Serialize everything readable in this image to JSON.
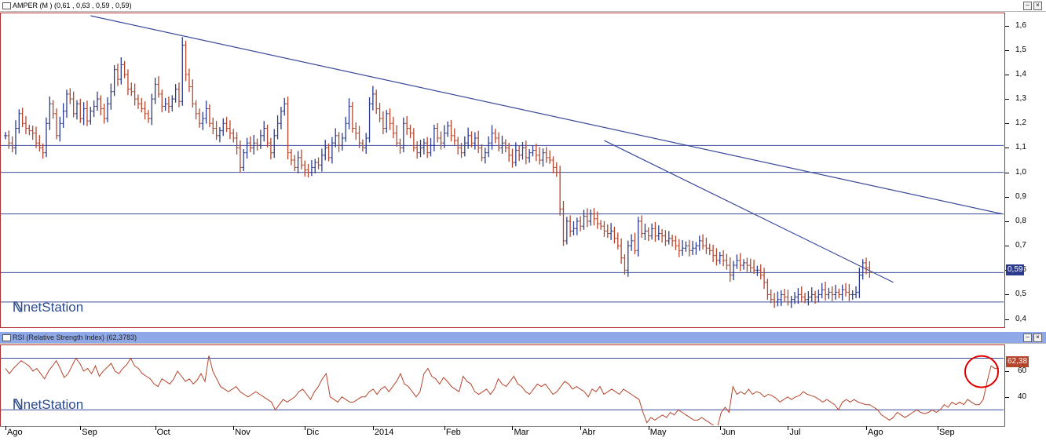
{
  "price_panel": {
    "title": "AMPER (M ) (0,61 , 0,63 , 0,59 , 0,59)",
    "last_value_tag": "0,59",
    "watermark": "netStation"
  },
  "rsi_panel": {
    "title": "RSI (Relative Strength Index) (62,3783)",
    "last_value_tag": "62,38",
    "watermark": "netStation"
  },
  "colors": {
    "bar_up": "#2b3a8c",
    "bar_down": "#b5452b",
    "trendline": "#3a4a99",
    "rsi_line": "#b5452b",
    "frame": "#b03030",
    "last_tag_price": "#2b3a8c",
    "last_tag_rsi": "#b5452b",
    "annotation_circle": "#e00000"
  },
  "chart_data": [
    {
      "type": "ohlc",
      "series_label": "AMPER",
      "ylim": [
        0.37,
        1.65
      ],
      "y_ticks": [
        "1,6",
        "1,5",
        "1,4",
        "1,3",
        "1,2",
        "1,1",
        "1,0",
        "0,9",
        "0,8",
        "0,7",
        "0,6",
        "0,5",
        "0,4"
      ],
      "x_labels": [
        "Ago",
        "Sep",
        "Oct",
        "Nov",
        "Dic",
        "2014",
        "Feb",
        "Mar",
        "Abr",
        "May",
        "Jun",
        "Jul",
        "Ago",
        "Sep"
      ],
      "month_day_index": [
        0,
        22,
        44,
        67,
        88,
        108,
        129,
        149,
        169,
        189,
        210,
        230,
        253,
        274
      ],
      "days": 293,
      "closes": [
        1.15,
        1.12,
        1.1,
        1.18,
        1.24,
        1.2,
        1.18,
        1.17,
        1.16,
        1.12,
        1.1,
        1.08,
        1.2,
        1.28,
        1.24,
        1.15,
        1.2,
        1.25,
        1.32,
        1.3,
        1.24,
        1.28,
        1.22,
        1.26,
        1.21,
        1.25,
        1.27,
        1.3,
        1.26,
        1.22,
        1.28,
        1.33,
        1.42,
        1.38,
        1.44,
        1.4,
        1.34,
        1.33,
        1.3,
        1.28,
        1.26,
        1.24,
        1.22,
        1.3,
        1.36,
        1.32,
        1.27,
        1.28,
        1.27,
        1.3,
        1.34,
        1.29,
        1.52,
        1.4,
        1.35,
        1.28,
        1.24,
        1.2,
        1.22,
        1.26,
        1.2,
        1.18,
        1.15,
        1.17,
        1.2,
        1.18,
        1.16,
        1.14,
        1.1,
        1.02,
        1.08,
        1.12,
        1.1,
        1.12,
        1.11,
        1.15,
        1.18,
        1.12,
        1.08,
        1.15,
        1.2,
        1.25,
        1.28,
        1.08,
        1.05,
        1.02,
        1.06,
        1.03,
        1.01,
        1.0,
        1.02,
        1.04,
        1.03,
        1.07,
        1.1,
        1.06,
        1.12,
        1.15,
        1.11,
        1.14,
        1.2,
        1.27,
        1.18,
        1.16,
        1.12,
        1.1,
        1.14,
        1.28,
        1.32,
        1.26,
        1.22,
        1.18,
        1.24,
        1.2,
        1.16,
        1.12,
        1.1,
        1.2,
        1.18,
        1.16,
        1.1,
        1.08,
        1.1,
        1.12,
        1.08,
        1.11,
        1.18,
        1.14,
        1.12,
        1.16,
        1.19,
        1.15,
        1.13,
        1.1,
        1.08,
        1.12,
        1.15,
        1.12,
        1.14,
        1.1,
        1.06,
        1.08,
        1.12,
        1.16,
        1.14,
        1.1,
        1.12,
        1.1,
        1.07,
        1.04,
        1.09,
        1.07,
        1.1,
        1.06,
        1.08,
        1.09,
        1.07,
        1.05,
        1.08,
        1.06,
        1.05,
        1.02,
        1.0,
        0.85,
        0.72,
        0.8,
        0.76,
        0.77,
        0.8,
        0.78,
        0.82,
        0.8,
        0.83,
        0.81,
        0.79,
        0.78,
        0.76,
        0.75,
        0.76,
        0.73,
        0.7,
        0.65,
        0.6,
        0.7,
        0.72,
        0.68,
        0.8,
        0.75,
        0.76,
        0.74,
        0.77,
        0.74,
        0.75,
        0.74,
        0.72,
        0.73,
        0.72,
        0.7,
        0.68,
        0.69,
        0.7,
        0.68,
        0.69,
        0.7,
        0.72,
        0.7,
        0.69,
        0.68,
        0.66,
        0.64,
        0.66,
        0.64,
        0.62,
        0.58,
        0.62,
        0.64,
        0.62,
        0.63,
        0.62,
        0.61,
        0.6,
        0.6,
        0.58,
        0.55,
        0.5,
        0.48,
        0.47,
        0.48,
        0.5,
        0.49,
        0.47,
        0.48,
        0.49,
        0.5,
        0.49,
        0.48,
        0.49,
        0.5,
        0.49,
        0.5,
        0.52,
        0.5,
        0.51,
        0.5,
        0.51,
        0.5,
        0.52,
        0.51,
        0.5,
        0.5,
        0.51,
        0.58,
        0.63,
        0.61,
        0.59
      ],
      "trendlines": [
        {
          "from": {
            "day": 25,
            "value": 1.64
          },
          "to": {
            "day": 293,
            "value": 0.83
          }
        },
        {
          "from": {
            "day": 176,
            "value": 1.13
          },
          "to": {
            "day": 261,
            "value": 0.55
          }
        }
      ],
      "horizontal_lines": [
        1.11,
        1.0,
        0.83,
        0.59,
        0.47
      ]
    },
    {
      "type": "line",
      "series_label": "RSI",
      "ylim": [
        18,
        80
      ],
      "y_ticks": [
        "60",
        "40"
      ],
      "horizontal_lines": [
        70,
        30
      ],
      "values": [
        62,
        58,
        62,
        65,
        68,
        66,
        64,
        60,
        62,
        58,
        54,
        60,
        64,
        68,
        62,
        55,
        58,
        64,
        70,
        66,
        60,
        62,
        58,
        64,
        56,
        60,
        63,
        66,
        60,
        58,
        62,
        65,
        70,
        64,
        62,
        58,
        56,
        54,
        50,
        48,
        54,
        52,
        50,
        54,
        60,
        56,
        52,
        54,
        50,
        53,
        58,
        52,
        72,
        60,
        54,
        48,
        46,
        44,
        46,
        48,
        44,
        42,
        40,
        42,
        44,
        42,
        40,
        38,
        36,
        30,
        34,
        38,
        36,
        38,
        40,
        44,
        46,
        42,
        38,
        44,
        48,
        54,
        58,
        40,
        38,
        36,
        40,
        38,
        36,
        36,
        38,
        40,
        40,
        44,
        46,
        42,
        46,
        48,
        44,
        48,
        52,
        58,
        50,
        48,
        44,
        40,
        44,
        58,
        62,
        56,
        54,
        50,
        55,
        52,
        48,
        46,
        44,
        56,
        52,
        50,
        44,
        42,
        44,
        46,
        42,
        46,
        54,
        50,
        48,
        52,
        56,
        50,
        48,
        44,
        42,
        46,
        50,
        48,
        50,
        46,
        42,
        44,
        48,
        52,
        50,
        46,
        48,
        46,
        44,
        40,
        46,
        44,
        48,
        42,
        44,
        46,
        44,
        42,
        46,
        44,
        42,
        40,
        38,
        28,
        20,
        24,
        22,
        24,
        26,
        24,
        28,
        26,
        30,
        28,
        26,
        24,
        22,
        22,
        24,
        22,
        20,
        18,
        16,
        28,
        32,
        28,
        48,
        42,
        44,
        42,
        46,
        42,
        44,
        43,
        40,
        42,
        41,
        39,
        36,
        38,
        40,
        38,
        40,
        41,
        44,
        42,
        41,
        40,
        38,
        36,
        38,
        36,
        34,
        30,
        36,
        38,
        36,
        38,
        36,
        35,
        34,
        34,
        32,
        30,
        26,
        24,
        22,
        24,
        28,
        26,
        24,
        26,
        28,
        30,
        28,
        27,
        28,
        30,
        28,
        30,
        34,
        32,
        36,
        34,
        36,
        34,
        38,
        36,
        34,
        34,
        38,
        52,
        64,
        62,
        62
      ]
    }
  ]
}
